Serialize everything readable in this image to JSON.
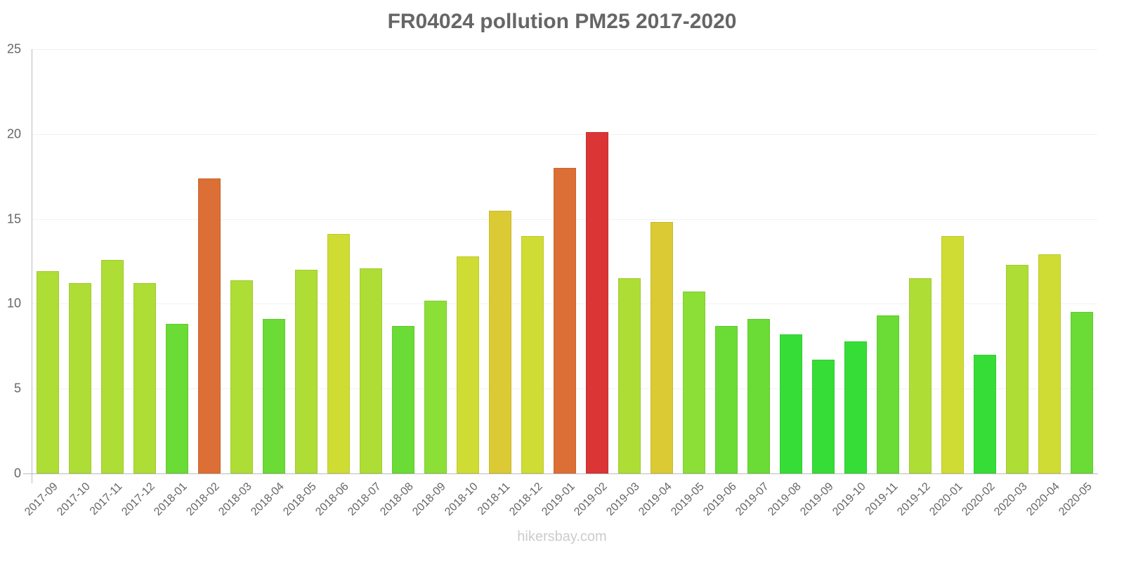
{
  "title": "FR04024 pollution PM25 2017-2020",
  "footer": "hikersbay.com",
  "colors": {
    "title": "#666666",
    "axis": "#bbbbbb",
    "grid": "#f2f2f2",
    "footer": "#cccccc"
  },
  "chart_data": {
    "type": "bar",
    "title": "FR04024 pollution PM25 2017-2020",
    "xlabel": "",
    "ylabel": "",
    "ylim": [
      0,
      25
    ],
    "yticks": [
      0,
      5,
      10,
      15,
      20,
      25
    ],
    "grid": true,
    "legend": "none",
    "categories": [
      "2017-09",
      "2017-10",
      "2017-11",
      "2017-12",
      "2018-01",
      "2018-02",
      "2018-03",
      "2018-04",
      "2018-05",
      "2018-06",
      "2018-07",
      "2018-08",
      "2018-09",
      "2018-10",
      "2018-11",
      "2018-12",
      "2019-01",
      "2019-02",
      "2019-03",
      "2019-04",
      "2019-05",
      "2019-06",
      "2019-07",
      "2019-08",
      "2019-09",
      "2019-10",
      "2019-11",
      "2019-12",
      "2020-01",
      "2020-02",
      "2020-03",
      "2020-04",
      "2020-05"
    ],
    "values": [
      11.9,
      11.2,
      12.6,
      11.2,
      8.8,
      17.4,
      11.4,
      9.1,
      12.0,
      14.1,
      12.1,
      8.7,
      10.2,
      12.8,
      15.5,
      14.0,
      18.0,
      20.1,
      11.5,
      14.8,
      10.7,
      8.7,
      9.1,
      8.2,
      6.7,
      7.8,
      9.3,
      11.5,
      14.0,
      7.0,
      12.3,
      12.9,
      9.5
    ],
    "bar_colors": [
      "#aedd36",
      "#aedd36",
      "#aedd36",
      "#aedd36",
      "#6bdb35",
      "#dc6f35",
      "#aedd36",
      "#6bdb35",
      "#aedd36",
      "#cfdc34",
      "#aedd36",
      "#6bdb35",
      "#8bdf36",
      "#cfdc34",
      "#dbca33",
      "#cfdc34",
      "#dc6f35",
      "#db3535",
      "#aedd36",
      "#dbca33",
      "#8bdf36",
      "#6bdb35",
      "#6bdb35",
      "#36dd36",
      "#36dd36",
      "#36dd36",
      "#6bdb35",
      "#aedd36",
      "#cfdc34",
      "#36dd36",
      "#aedd36",
      "#cfdc34",
      "#6bdb35"
    ]
  }
}
